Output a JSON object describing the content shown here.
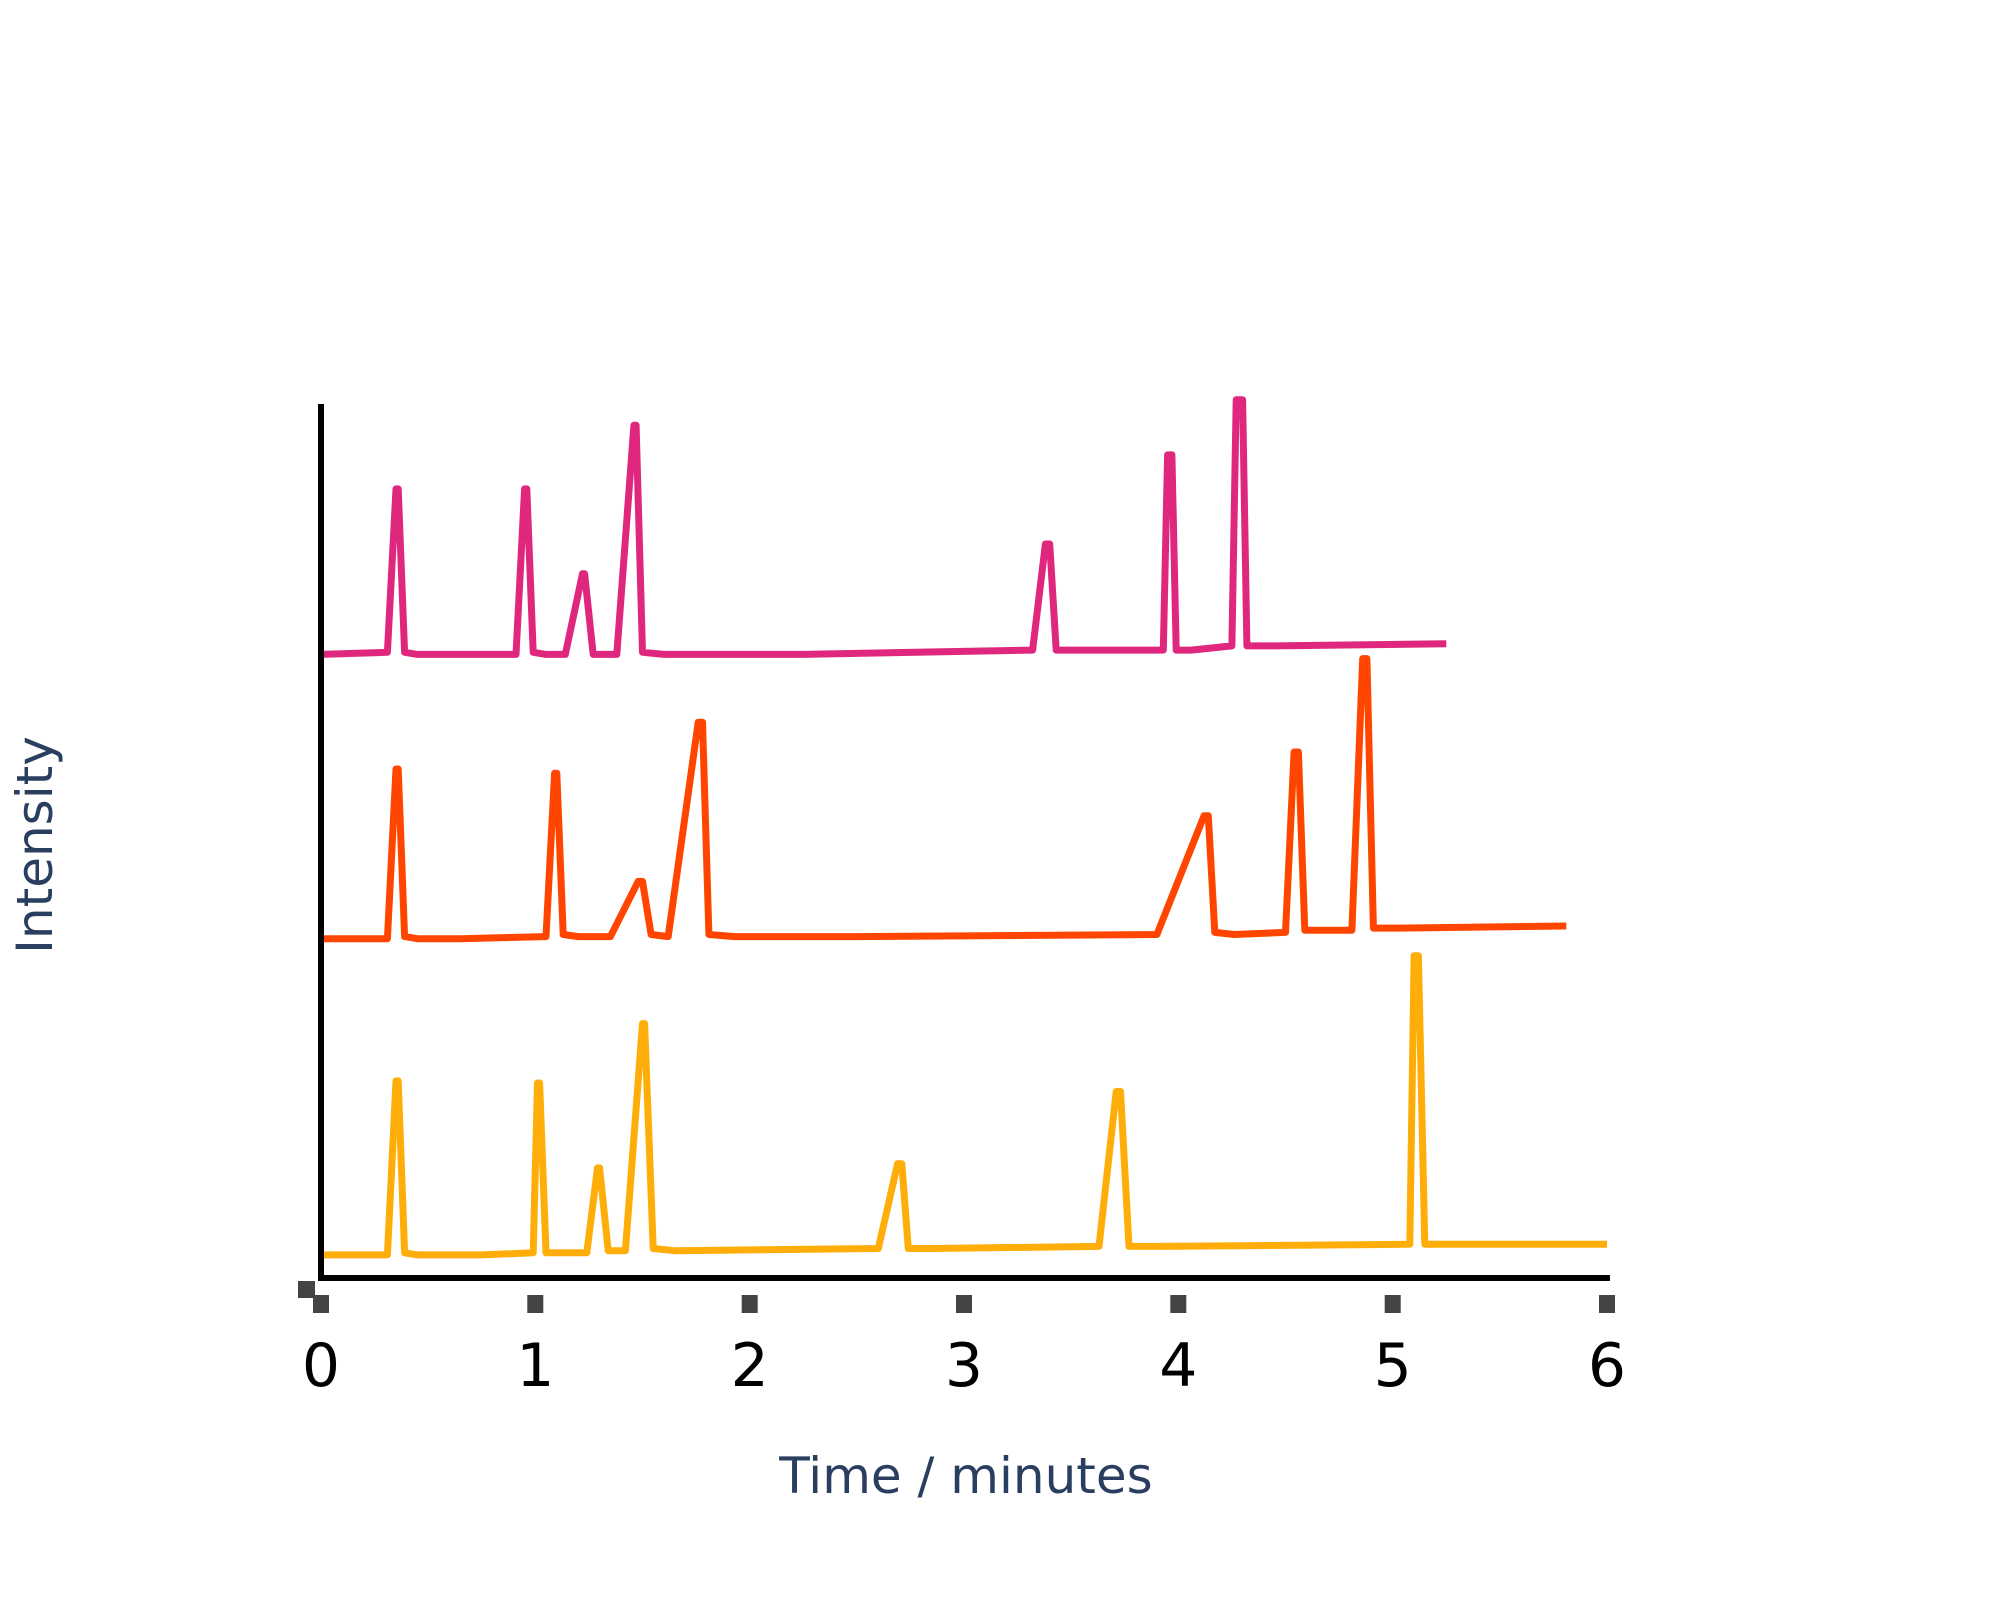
{
  "chart_data": {
    "type": "line",
    "title": "",
    "xlabel": "Time / minutes",
    "ylabel": "Intensity",
    "xlim": [
      0,
      6
    ],
    "x_ticks": [
      0,
      1,
      2,
      3,
      4,
      5,
      6
    ],
    "ylim": [
      0,
      4.1
    ],
    "y_ticks_shown": false,
    "grid": false,
    "legend": "none",
    "series": [
      {
        "color": "#e0277e",
        "points": [
          [
            0.0,
            2.92
          ],
          [
            0.31,
            2.93
          ],
          [
            0.35,
            3.7
          ],
          [
            0.36,
            3.7
          ],
          [
            0.39,
            2.93
          ],
          [
            0.45,
            2.92
          ],
          [
            0.91,
            2.92
          ],
          [
            0.95,
            3.7
          ],
          [
            0.96,
            3.7
          ],
          [
            0.99,
            2.93
          ],
          [
            1.05,
            2.92
          ],
          [
            1.14,
            2.92
          ],
          [
            1.22,
            3.3
          ],
          [
            1.23,
            3.3
          ],
          [
            1.27,
            2.92
          ],
          [
            1.38,
            2.92
          ],
          [
            1.46,
            4.0
          ],
          [
            1.47,
            4.0
          ],
          [
            1.5,
            2.93
          ],
          [
            1.6,
            2.92
          ],
          [
            2.25,
            2.92
          ],
          [
            3.32,
            2.94
          ],
          [
            3.38,
            3.44
          ],
          [
            3.4,
            3.44
          ],
          [
            3.43,
            2.94
          ],
          [
            3.53,
            2.94
          ],
          [
            3.93,
            2.94
          ],
          [
            3.95,
            3.86
          ],
          [
            3.97,
            3.86
          ],
          [
            3.99,
            2.94
          ],
          [
            4.06,
            2.94
          ],
          [
            4.25,
            2.96
          ],
          [
            4.27,
            4.12
          ],
          [
            4.3,
            4.12
          ],
          [
            4.32,
            2.96
          ],
          [
            4.45,
            2.96
          ],
          [
            5.25,
            2.97
          ]
        ]
      },
      {
        "color": "#ff4500",
        "points": [
          [
            0.0,
            1.58
          ],
          [
            0.31,
            1.58
          ],
          [
            0.35,
            2.38
          ],
          [
            0.36,
            2.38
          ],
          [
            0.39,
            1.59
          ],
          [
            0.45,
            1.58
          ],
          [
            0.65,
            1.58
          ],
          [
            1.05,
            1.59
          ],
          [
            1.09,
            2.36
          ],
          [
            1.1,
            2.36
          ],
          [
            1.13,
            1.6
          ],
          [
            1.2,
            1.59
          ],
          [
            1.35,
            1.59
          ],
          [
            1.48,
            1.85
          ],
          [
            1.5,
            1.85
          ],
          [
            1.54,
            1.6
          ],
          [
            1.62,
            1.59
          ],
          [
            1.76,
            2.6
          ],
          [
            1.78,
            2.6
          ],
          [
            1.81,
            1.6
          ],
          [
            1.93,
            1.59
          ],
          [
            2.5,
            1.59
          ],
          [
            3.9,
            1.6
          ],
          [
            4.12,
            2.16
          ],
          [
            4.14,
            2.16
          ],
          [
            4.17,
            1.61
          ],
          [
            4.26,
            1.6
          ],
          [
            4.5,
            1.61
          ],
          [
            4.54,
            2.46
          ],
          [
            4.56,
            2.46
          ],
          [
            4.59,
            1.62
          ],
          [
            4.66,
            1.62
          ],
          [
            4.81,
            1.62
          ],
          [
            4.86,
            2.9
          ],
          [
            4.88,
            2.9
          ],
          [
            4.91,
            1.63
          ],
          [
            5.03,
            1.63
          ],
          [
            5.81,
            1.64
          ]
        ]
      },
      {
        "color": "#ffae09",
        "points": [
          [
            0.0,
            0.09
          ],
          [
            0.31,
            0.09
          ],
          [
            0.35,
            0.91
          ],
          [
            0.36,
            0.91
          ],
          [
            0.39,
            0.1
          ],
          [
            0.45,
            0.09
          ],
          [
            0.75,
            0.09
          ],
          [
            0.99,
            0.1
          ],
          [
            1.01,
            0.9
          ],
          [
            1.02,
            0.9
          ],
          [
            1.05,
            0.1
          ],
          [
            1.12,
            0.1
          ],
          [
            1.24,
            0.1
          ],
          [
            1.29,
            0.5
          ],
          [
            1.3,
            0.5
          ],
          [
            1.34,
            0.11
          ],
          [
            1.42,
            0.11
          ],
          [
            1.5,
            1.18
          ],
          [
            1.51,
            1.18
          ],
          [
            1.55,
            0.12
          ],
          [
            1.65,
            0.11
          ],
          [
            2.6,
            0.12
          ],
          [
            2.69,
            0.52
          ],
          [
            2.71,
            0.52
          ],
          [
            2.74,
            0.12
          ],
          [
            2.85,
            0.12
          ],
          [
            3.63,
            0.13
          ],
          [
            3.71,
            0.86
          ],
          [
            3.73,
            0.86
          ],
          [
            3.77,
            0.13
          ],
          [
            3.9,
            0.13
          ],
          [
            5.08,
            0.14
          ],
          [
            5.1,
            1.5
          ],
          [
            5.12,
            1.5
          ],
          [
            5.15,
            0.14
          ],
          [
            5.28,
            0.14
          ],
          [
            6.0,
            0.14
          ]
        ]
      }
    ]
  }
}
